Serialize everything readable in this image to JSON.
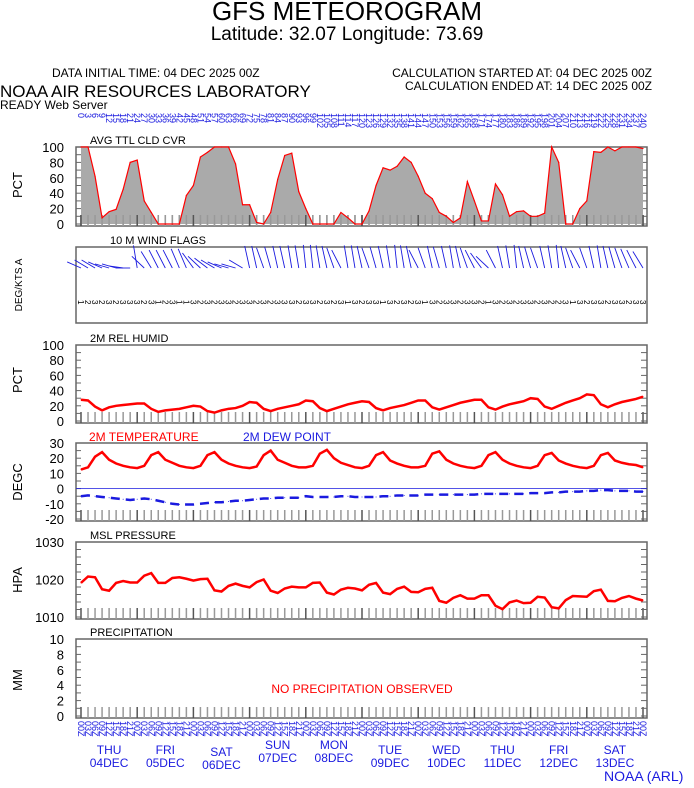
{
  "header": {
    "title": "GFS METEOROGRAM",
    "location": "Latitude: 32.07 Longitude:  73.69",
    "data_initial": "DATA INITIAL TIME: 04 DEC 2025 00Z",
    "calc_started": "CALCULATION STARTED AT: 04 DEC 2025 00Z",
    "calc_ended": "CALCULATION ENDED AT: 14 DEC 2025 00Z",
    "lab": "NOAA AIR RESOURCES LABORATORY",
    "server": "READY Web Server"
  },
  "footer": "NOAA (ARL)",
  "colors": {
    "line": "#ff0000",
    "fill": "#aaaaaa",
    "axis_text": "#1a1adf",
    "dew": "#1a1adf"
  },
  "x_axis": {
    "forecast_hours": [
      "0",
      "3",
      "6",
      "9",
      "12",
      "15",
      "18",
      "21",
      "24",
      "27",
      "30",
      "33",
      "36",
      "39",
      "42",
      "45",
      "48",
      "51",
      "54",
      "57",
      "60",
      "63",
      "66",
      "69",
      "72",
      "75",
      "78",
      "81",
      "84",
      "87",
      "90",
      "93",
      "96",
      "99",
      "102",
      "105",
      "108",
      "111",
      "114",
      "117",
      "120",
      "123",
      "126",
      "129",
      "132",
      "135",
      "138",
      "141",
      "144",
      "147",
      "150",
      "153",
      "156",
      "159",
      "162",
      "165",
      "168",
      "171",
      "174",
      "177",
      "180",
      "183",
      "186",
      "189",
      "192",
      "195",
      "198",
      "201",
      "204",
      "207",
      "210",
      "213",
      "216",
      "219",
      "222",
      "225",
      "228",
      "231",
      "234",
      "237",
      "240"
    ],
    "times": [
      "00Z",
      "03Z",
      "06Z",
      "09Z",
      "12Z",
      "15Z",
      "18Z",
      "21Z",
      "00Z",
      "03Z",
      "06Z",
      "09Z",
      "12Z",
      "15Z",
      "18Z",
      "21Z",
      "00Z",
      "03Z",
      "06Z",
      "09Z",
      "12Z",
      "15Z",
      "18Z",
      "21Z",
      "00Z",
      "03Z",
      "06Z",
      "09Z",
      "12Z",
      "15Z",
      "18Z",
      "21Z",
      "00Z",
      "03Z",
      "06Z",
      "09Z",
      "12Z",
      "15Z",
      "18Z",
      "21Z",
      "00Z",
      "03Z",
      "06Z",
      "09Z",
      "12Z",
      "15Z",
      "18Z",
      "21Z",
      "00Z",
      "03Z",
      "06Z",
      "09Z",
      "12Z",
      "15Z",
      "18Z",
      "21Z",
      "00Z",
      "03Z",
      "06Z",
      "09Z",
      "12Z",
      "15Z",
      "18Z",
      "21Z",
      "00Z",
      "03Z",
      "06Z",
      "09Z",
      "12Z",
      "15Z",
      "18Z",
      "21Z",
      "00Z",
      "03Z",
      "06Z",
      "09Z",
      "12Z",
      "15Z",
      "18Z",
      "21Z",
      "00Z"
    ],
    "days": [
      {
        "dow": "THU",
        "date": "04DEC"
      },
      {
        "dow": "FRI",
        "date": "05DEC"
      },
      {
        "dow": "SAT",
        "date": "06DEC"
      },
      {
        "dow": "SUN",
        "date": "07DEC"
      },
      {
        "dow": "MON",
        "date": "08DEC"
      },
      {
        "dow": "TUE",
        "date": "09DEC"
      },
      {
        "dow": "WED",
        "date": "10DEC"
      },
      {
        "dow": "THU",
        "date": "11DEC"
      },
      {
        "dow": "FRI",
        "date": "12DEC"
      },
      {
        "dow": "SAT",
        "date": "13DEC"
      }
    ]
  },
  "chart_data": [
    {
      "type": "area",
      "title": "AVG TTL CLD CVR",
      "ylabel": "PCT",
      "ylim": [
        0,
        100
      ],
      "yticks": [
        "100",
        "80",
        "60",
        "40",
        "20",
        "0"
      ],
      "values": [
        100,
        100,
        62,
        8,
        16,
        19,
        45,
        80,
        83,
        30,
        15,
        0,
        0,
        0,
        0,
        37,
        50,
        87,
        93,
        100,
        100,
        100,
        78,
        25,
        25,
        2,
        0,
        15,
        58,
        89,
        92,
        42,
        20,
        0,
        0,
        0,
        0,
        15,
        8,
        0,
        0,
        17,
        50,
        73,
        70,
        75,
        87,
        80,
        62,
        40,
        33,
        15,
        10,
        2,
        8,
        55,
        30,
        4,
        4,
        52,
        38,
        10,
        16,
        17,
        10,
        10,
        14,
        100,
        80,
        0,
        0,
        20,
        30,
        94,
        93,
        100,
        95,
        100,
        100,
        100,
        98
      ]
    },
    {
      "type": "wind",
      "title": "10 M  WIND FLAGS",
      "ylabel": "DEG/KTS A",
      "directions_deg": [
        285,
        290,
        290,
        285,
        280,
        280,
        275,
        270,
        345,
        300,
        315,
        320,
        320,
        320,
        325,
        325,
        310,
        300,
        295,
        290,
        285,
        280,
        280,
        290,
        340,
        340,
        330,
        335,
        340,
        340,
        345,
        345,
        350,
        350,
        345,
        340,
        330,
        320,
        345,
        345,
        340,
        330,
        335,
        340,
        345,
        350,
        345,
        340,
        320,
        330,
        340,
        335,
        340,
        345,
        340,
        330,
        320,
        310,
        300,
        320,
        340,
        345,
        350,
        340,
        335,
        330,
        340,
        345,
        350,
        340,
        330,
        320,
        330,
        340,
        345,
        340,
        335,
        330,
        325,
        320,
        315
      ],
      "speeds": [
        "1",
        "2",
        "3",
        "2",
        "3",
        "2",
        "3",
        "3",
        "3",
        "2",
        "3",
        "1",
        "2",
        "3",
        "1",
        "1",
        "3",
        "2",
        "3",
        "2",
        "3",
        "3",
        "2",
        "3",
        "3",
        "2",
        "3",
        "2",
        "3",
        "3",
        "3",
        "2",
        "3",
        "3",
        "2",
        "3",
        "2",
        "3",
        "1",
        "3",
        "2",
        "3",
        "3",
        "1",
        "3",
        "2",
        "3",
        "2",
        "3",
        "1",
        "3",
        "2",
        "3",
        "3",
        "2",
        "3",
        "3",
        "2",
        "1",
        "3",
        "2",
        "3",
        "2",
        "3",
        "3",
        "2",
        "3",
        "2",
        "2",
        "3",
        "1",
        "3",
        "2",
        "3",
        "3",
        "2",
        "3",
        "3",
        "2",
        "3",
        "3"
      ]
    },
    {
      "type": "line",
      "title": "2M REL HUMID",
      "ylabel": "PCT",
      "ylim": [
        0,
        100
      ],
      "yticks": [
        "100",
        "80",
        "60",
        "40",
        "20",
        "0"
      ],
      "values": [
        28,
        27,
        19,
        14,
        18,
        20,
        21,
        22,
        23,
        23,
        16,
        12,
        14,
        15,
        16,
        18,
        20,
        19,
        13,
        11,
        14,
        16,
        17,
        20,
        25,
        24,
        16,
        13,
        16,
        18,
        20,
        22,
        27,
        26,
        17,
        13,
        16,
        19,
        22,
        24,
        26,
        25,
        17,
        14,
        17,
        19,
        21,
        24,
        27,
        27,
        18,
        15,
        18,
        21,
        24,
        26,
        28,
        28,
        18,
        15,
        19,
        22,
        24,
        26,
        30,
        29,
        19,
        16,
        20,
        24,
        27,
        30,
        35,
        34,
        22,
        18,
        22,
        25,
        27,
        29,
        32
      ]
    },
    {
      "type": "line",
      "title": "",
      "ylabel": "DEGC",
      "ylim": [
        -20,
        30
      ],
      "yticks": [
        "30",
        "20",
        "10",
        "0",
        "-10",
        "-20"
      ],
      "series": [
        {
          "name": "2M TEMPERATURE",
          "color": "#ff0000",
          "values": [
            12.5,
            14,
            21,
            24,
            19,
            16.5,
            15,
            14,
            13.5,
            15,
            22,
            24,
            19,
            17,
            15,
            14,
            13.5,
            15,
            22,
            24,
            19,
            16.5,
            15,
            14,
            13.5,
            14.5,
            22,
            25,
            19,
            17,
            15,
            14,
            14,
            15,
            23,
            25.5,
            20,
            17,
            15.5,
            14,
            13.5,
            15,
            22,
            24,
            18.5,
            16.5,
            15,
            14,
            14,
            15,
            23,
            24.5,
            19,
            16.5,
            15,
            14,
            13.5,
            15,
            22,
            24,
            19,
            16.5,
            15,
            14,
            13.5,
            15,
            22,
            23.5,
            18.5,
            16.5,
            15,
            14,
            13.5,
            15,
            22,
            23.5,
            18.5,
            17,
            16,
            15.5,
            14
          ]
        },
        {
          "name": "2M   DEW POINT",
          "color": "#1a1adf",
          "values": [
            -5,
            -4.5,
            -5,
            -5.5,
            -6,
            -6.5,
            -7,
            -7.5,
            -7,
            -6.5,
            -7,
            -8,
            -9,
            -10,
            -10.5,
            -10.5,
            -10.5,
            -10,
            -9.5,
            -9,
            -9,
            -8.5,
            -8,
            -8,
            -7.5,
            -7,
            -6.5,
            -6.5,
            -6,
            -6,
            -6,
            -6,
            -5,
            -5.5,
            -5.5,
            -5.5,
            -5.5,
            -5,
            -5,
            -5.5,
            -5.5,
            -5.5,
            -5.5,
            -5,
            -5,
            -4.5,
            -4.5,
            -4.5,
            -4.5,
            -4,
            -4,
            -4,
            -4,
            -4,
            -4,
            -4,
            -4,
            -3.5,
            -3.5,
            -3.5,
            -3.5,
            -3.5,
            -3.5,
            -3.5,
            -3,
            -3,
            -3,
            -2.5,
            -2.5,
            -2,
            -2,
            -2,
            -1.5,
            -1.5,
            -1,
            -1,
            -1.5,
            -1.5,
            -1.5,
            -2,
            -2
          ]
        }
      ]
    },
    {
      "type": "line",
      "title": "MSL PRESSURE",
      "ylabel": "HPA",
      "ylim": [
        1010,
        1030
      ],
      "yticks": [
        "1030",
        "1020",
        "1010"
      ],
      "values": [
        1019.1,
        1020.8,
        1020.6,
        1017.4,
        1017.0,
        1019.1,
        1019.6,
        1019.2,
        1019.2,
        1021.0,
        1021.7,
        1019.1,
        1019.1,
        1020.4,
        1020.6,
        1020.2,
        1019.7,
        1020.1,
        1020.2,
        1017.1,
        1016.8,
        1018.3,
        1018.9,
        1018.3,
        1017.9,
        1019.3,
        1020.0,
        1017.0,
        1016.4,
        1017.6,
        1018.1,
        1017.9,
        1017.9,
        1019.1,
        1019.2,
        1016.5,
        1016.0,
        1017.3,
        1017.8,
        1017.6,
        1017.1,
        1018.6,
        1019.1,
        1016.5,
        1016.1,
        1017.5,
        1018.1,
        1016.7,
        1016.6,
        1017.5,
        1017.8,
        1014.3,
        1013.8,
        1015.1,
        1015.8,
        1014.9,
        1014.9,
        1015.8,
        1015.8,
        1013.0,
        1012.1,
        1013.9,
        1014.4,
        1013.7,
        1013.8,
        1015.4,
        1015.2,
        1012.6,
        1012.3,
        1014.5,
        1015.6,
        1015.5,
        1015.4,
        1016.9,
        1017.3,
        1014.3,
        1014.2,
        1015.1,
        1015.6,
        1014.9,
        1014.4
      ]
    },
    {
      "type": "line",
      "title": "PRECIPITATION",
      "ylabel": "MM",
      "ylim": [
        0,
        10
      ],
      "yticks": [
        "10",
        "8",
        "6",
        "4",
        "2",
        "0"
      ],
      "values": [],
      "note": "NO PRECIPITATION OBSERVED"
    }
  ]
}
